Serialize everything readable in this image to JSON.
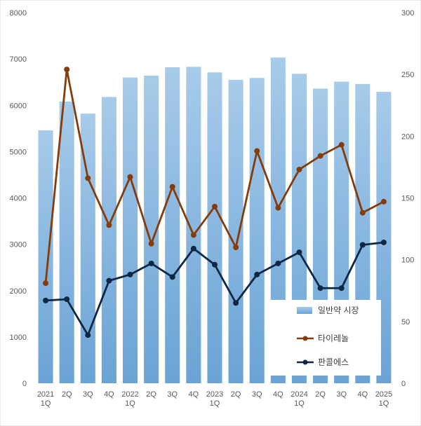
{
  "chart_data": {
    "type": "bar+line",
    "categories": [
      [
        "2021",
        "1Q"
      ],
      [
        "2Q"
      ],
      [
        "3Q"
      ],
      [
        "4Q"
      ],
      [
        "2022",
        "1Q"
      ],
      [
        "2Q"
      ],
      [
        "3Q"
      ],
      [
        "4Q"
      ],
      [
        "2023",
        "1Q"
      ],
      [
        "2Q"
      ],
      [
        "3Q"
      ],
      [
        "4Q"
      ],
      [
        "2024",
        "1Q"
      ],
      [
        "2Q"
      ],
      [
        "3Q"
      ],
      [
        "4Q"
      ],
      [
        "2025",
        "1Q"
      ]
    ],
    "left_axis": {
      "min": 0,
      "max": 8000,
      "step": 1000,
      "ticks": [
        "0",
        "1000",
        "2000",
        "3000",
        "4000",
        "5000",
        "6000",
        "7000",
        "8000"
      ]
    },
    "right_axis": {
      "min": 0,
      "max": 300,
      "step": 50,
      "ticks": [
        "0",
        "50",
        "100",
        "150",
        "200",
        "250",
        "300"
      ]
    },
    "series": [
      {
        "name": "일반약 시장",
        "kind": "bar",
        "axis": "left",
        "color": "#8fbbe2",
        "values": [
          5460,
          6080,
          5820,
          6180,
          6600,
          6640,
          6820,
          6830,
          6710,
          6550,
          6590,
          7030,
          6680,
          6360,
          6510,
          6460,
          6290
        ]
      },
      {
        "name": "타이레놀",
        "kind": "line",
        "axis": "right",
        "color": "#843c0c",
        "values": [
          81,
          254,
          166,
          128,
          167,
          113,
          159,
          120,
          143,
          110,
          188,
          142,
          173,
          184,
          193,
          138,
          147
        ]
      },
      {
        "name": "판콜에스",
        "kind": "line",
        "axis": "right",
        "color": "#0d2744",
        "values": [
          67,
          68,
          39,
          83,
          88,
          97,
          86,
          109,
          96,
          65,
          88,
          97,
          106,
          77,
          77,
          112,
          114
        ]
      }
    ],
    "legend_position": "bottom-right",
    "grid": false
  }
}
